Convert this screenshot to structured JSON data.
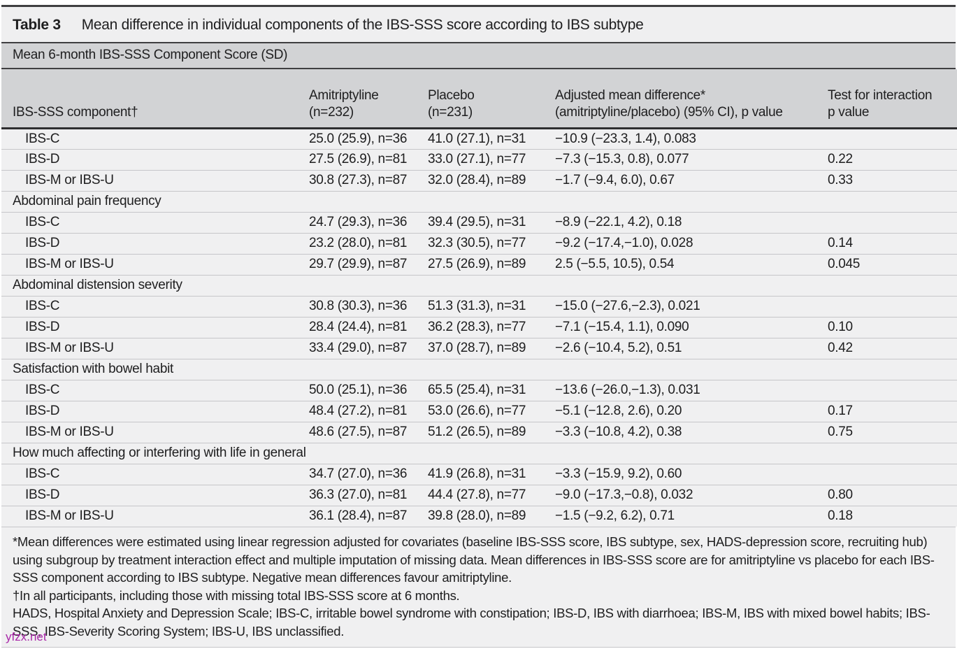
{
  "table": {
    "label": "Table 3",
    "caption": "Mean difference in individual components of the IBS-SSS score according to IBS subtype",
    "band": "Mean 6-month IBS-SSS Component Score (SD)",
    "columns": [
      {
        "line1": "",
        "line2": "IBS-SSS component†"
      },
      {
        "line1": "Amitriptyline",
        "line2": "(n=232)"
      },
      {
        "line1": "Placebo",
        "line2": "(n=231)"
      },
      {
        "line1": "Adjusted mean difference*",
        "line2": "(amitriptyline/placebo) (95% CI), p value"
      },
      {
        "line1": "Test for interaction",
        "line2": "p value"
      }
    ],
    "sections": [
      {
        "header": null,
        "rows": [
          {
            "label": "IBS-C",
            "amitriptyline": "25.0 (25.9), n=36",
            "placebo": "41.0 (27.1), n=31",
            "diff": "−10.9 (−23.3, 1.4), 0.083",
            "interaction": ""
          },
          {
            "label": "IBS-D",
            "amitriptyline": "27.5 (26.9), n=81",
            "placebo": "33.0 (27.1), n=77",
            "diff": "−7.3 (−15.3, 0.8), 0.077",
            "interaction": "0.22"
          },
          {
            "label": "IBS-M or IBS-U",
            "amitriptyline": "30.8 (27.3), n=87",
            "placebo": "32.0 (28.4), n=89",
            "diff": "−1.7 (−9.4, 6.0), 0.67",
            "interaction": "0.33"
          }
        ]
      },
      {
        "header": "Abdominal pain frequency",
        "rows": [
          {
            "label": "IBS-C",
            "amitriptyline": "24.7 (29.3), n=36",
            "placebo": "39.4 (29.5), n=31",
            "diff": "−8.9 (−22.1, 4.2), 0.18",
            "interaction": ""
          },
          {
            "label": "IBS-D",
            "amitriptyline": "23.2 (28.0), n=81",
            "placebo": "32.3 (30.5), n=77",
            "diff": "−9.2 (−17.4,−1.0), 0.028",
            "interaction": "0.14"
          },
          {
            "label": "IBS-M or IBS-U",
            "amitriptyline": "29.7 (29.9), n=87",
            "placebo": "27.5 (26.9), n=89",
            "diff": "2.5 (−5.5, 10.5), 0.54",
            "interaction": "0.045"
          }
        ]
      },
      {
        "header": "Abdominal distension severity",
        "rows": [
          {
            "label": "IBS-C",
            "amitriptyline": "30.8 (30.3), n=36",
            "placebo": "51.3 (31.3), n=31",
            "diff": "−15.0 (−27.6,−2.3), 0.021",
            "interaction": ""
          },
          {
            "label": "IBS-D",
            "amitriptyline": "28.4 (24.4), n=81",
            "placebo": "36.2 (28.3), n=77",
            "diff": "−7.1 (−15.4, 1.1), 0.090",
            "interaction": "0.10"
          },
          {
            "label": "IBS-M or IBS-U",
            "amitriptyline": "33.4 (29.0), n=87",
            "placebo": "37.0 (28.7), n=89",
            "diff": "−2.6 (−10.4, 5.2), 0.51",
            "interaction": "0.42"
          }
        ]
      },
      {
        "header": "Satisfaction with bowel habit",
        "rows": [
          {
            "label": "IBS-C",
            "amitriptyline": "50.0 (25.1), n=36",
            "placebo": "65.5 (25.4), n=31",
            "diff": "−13.6 (−26.0,−1.3), 0.031",
            "interaction": ""
          },
          {
            "label": "IBS-D",
            "amitriptyline": "48.4 (27.2), n=81",
            "placebo": "53.0 (26.6), n=77",
            "diff": "−5.1 (−12.8, 2.6), 0.20",
            "interaction": "0.17"
          },
          {
            "label": "IBS-M or IBS-U",
            "amitriptyline": "48.6 (27.5), n=87",
            "placebo": "51.2 (26.5), n=89",
            "diff": "−3.3 (−10.8, 4.2), 0.38",
            "interaction": "0.75"
          }
        ]
      },
      {
        "header": "How much affecting or interfering with life in general",
        "rows": [
          {
            "label": "IBS-C",
            "amitriptyline": "34.7 (27.0), n=36",
            "placebo": "41.9 (26.8), n=31",
            "diff": "−3.3 (−15.9, 9.2), 0.60",
            "interaction": ""
          },
          {
            "label": "IBS-D",
            "amitriptyline": "36.3 (27.0), n=81",
            "placebo": "44.4 (27.8), n=77",
            "diff": "−9.0 (−17.3,−0.8), 0.032",
            "interaction": "0.80"
          },
          {
            "label": "IBS-M or IBS-U",
            "amitriptyline": "36.1 (28.4), n=87",
            "placebo": "39.8 (28.0), n=89",
            "diff": "−1.5 (−9.2, 6.2), 0.71",
            "interaction": "0.18"
          }
        ]
      }
    ],
    "footnotes": [
      "*Mean differences were estimated using linear regression adjusted for covariates (baseline IBS-SSS score, IBS subtype, sex, HADS-depression score, recruiting hub) using subgroup by treatment interaction effect and multiple imputation of missing data. Mean differences in IBS-SSS score are for amitriptyline vs placebo for each IBS-SSS component according to IBS subtype. Negative mean differences favour amitriptyline.",
      "†In all participants, including those with missing total IBS-SSS score at 6 months.",
      "HADS, Hospital Anxiety and Depression Scale; IBS-C, irritable bowel syndrome with constipation; IBS-D, IBS with diarrhoea; IBS-M, IBS with mixed bowel habits; IBS-SSS, IBS-Severity Scoring System; IBS-U, IBS unclassified."
    ]
  },
  "watermark": "yfzx.net",
  "colors": {
    "table_background": "#f0f0f1",
    "header_band": "#d2d3d5",
    "dark_rule": "#3f3f41",
    "thin_rule": "#c6c6c9",
    "text": "#1e1e1f",
    "watermark": "#a928a9"
  }
}
